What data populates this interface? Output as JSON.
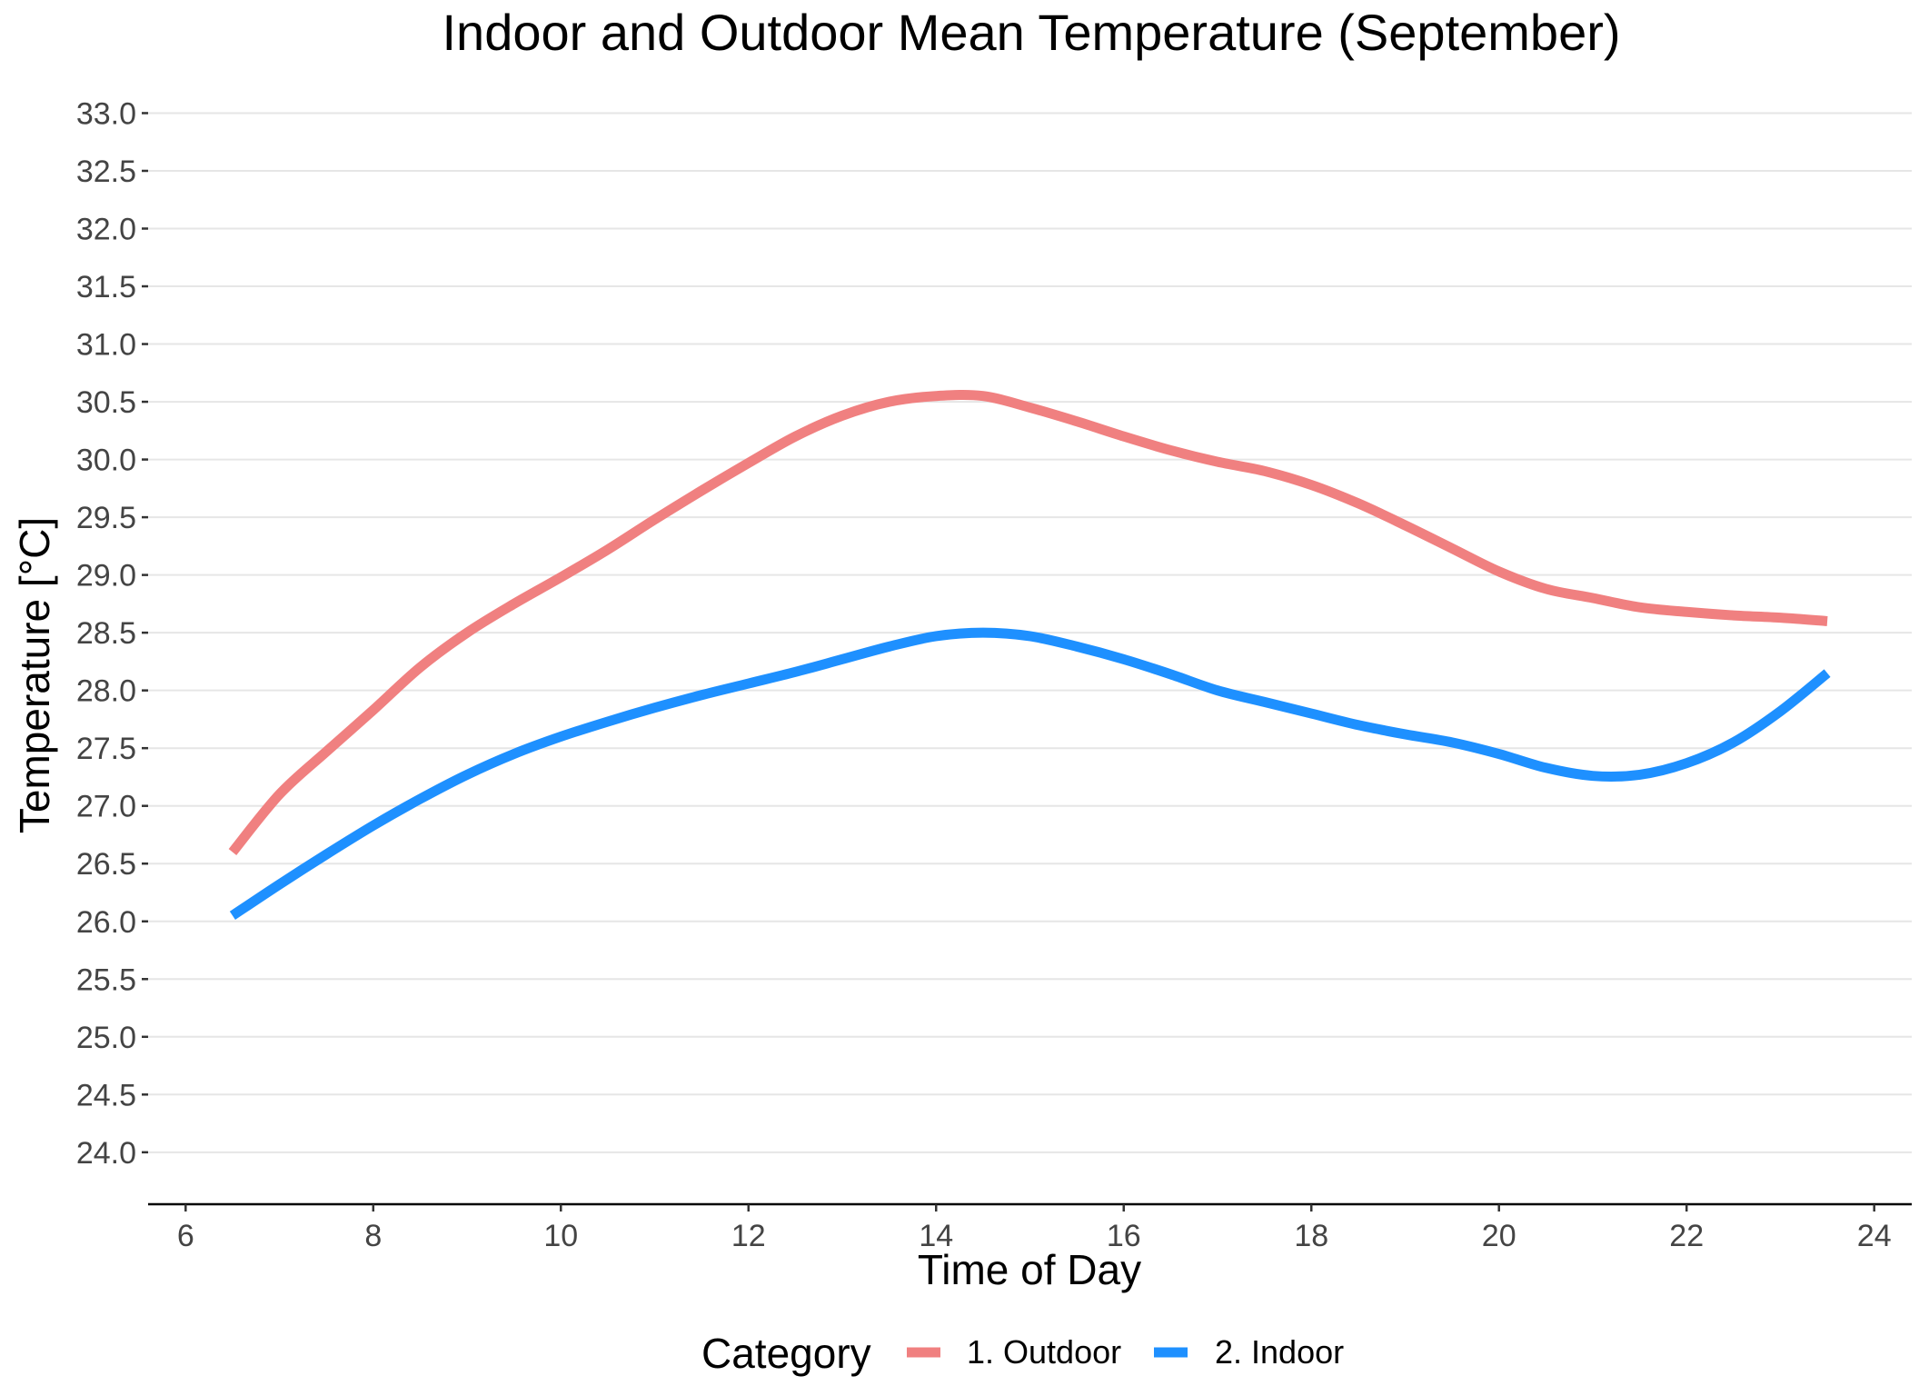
{
  "chart_data": {
    "type": "line",
    "title": "Indoor and Outdoor Mean Temperature (September)",
    "xlabel": "Time of Day",
    "ylabel": "Temperature [°C]",
    "xlim": [
      5.6,
      24.4
    ],
    "ylim": [
      23.55,
      33.35
    ],
    "x_ticks": [
      6,
      8,
      10,
      12,
      14,
      16,
      18,
      20,
      22,
      24
    ],
    "y_ticks": [
      24.0,
      24.5,
      25.0,
      25.5,
      26.0,
      26.5,
      27.0,
      27.5,
      28.0,
      28.5,
      29.0,
      29.5,
      30.0,
      30.5,
      31.0,
      31.5,
      32.0,
      32.5,
      33.0
    ],
    "grid": "horizontal major lines",
    "legend": {
      "position": "bottom",
      "title": "Category"
    },
    "series": [
      {
        "name": "1. Outdoor",
        "color": "#F08080",
        "x": [
          6.5,
          7,
          7.5,
          8,
          8.5,
          9,
          9.5,
          10,
          10.5,
          11,
          11.5,
          12,
          12.5,
          13,
          13.5,
          14,
          14.5,
          15,
          15.5,
          16,
          16.5,
          17,
          17.5,
          18,
          18.5,
          19,
          19.5,
          20,
          20.5,
          21,
          21.5,
          22,
          22.5,
          23,
          23.5
        ],
        "y": [
          26.6,
          27.1,
          27.47,
          27.83,
          28.2,
          28.5,
          28.75,
          28.98,
          29.22,
          29.48,
          29.73,
          29.97,
          30.2,
          30.38,
          30.5,
          30.55,
          30.55,
          30.45,
          30.33,
          30.2,
          30.08,
          29.98,
          29.9,
          29.78,
          29.62,
          29.43,
          29.23,
          29.03,
          28.88,
          28.8,
          28.72,
          28.68,
          28.65,
          28.63,
          28.6
        ]
      },
      {
        "name": "2. Indoor",
        "color": "#1E90FF",
        "x": [
          6.5,
          7,
          7.5,
          8,
          8.5,
          9,
          9.5,
          10,
          10.5,
          11,
          11.5,
          12,
          12.5,
          13,
          13.5,
          14,
          14.5,
          15,
          15.5,
          16,
          16.5,
          17,
          17.5,
          18,
          18.5,
          19,
          19.5,
          20,
          20.5,
          21,
          21.5,
          22,
          22.5,
          23,
          23.5
        ],
        "y": [
          26.05,
          26.32,
          26.58,
          26.83,
          27.06,
          27.27,
          27.45,
          27.6,
          27.73,
          27.85,
          27.96,
          28.06,
          28.16,
          28.27,
          28.38,
          28.47,
          28.5,
          28.47,
          28.38,
          28.27,
          28.14,
          28.0,
          27.9,
          27.8,
          27.7,
          27.62,
          27.55,
          27.45,
          27.33,
          27.26,
          27.27,
          27.37,
          27.55,
          27.82,
          28.15
        ]
      }
    ]
  }
}
